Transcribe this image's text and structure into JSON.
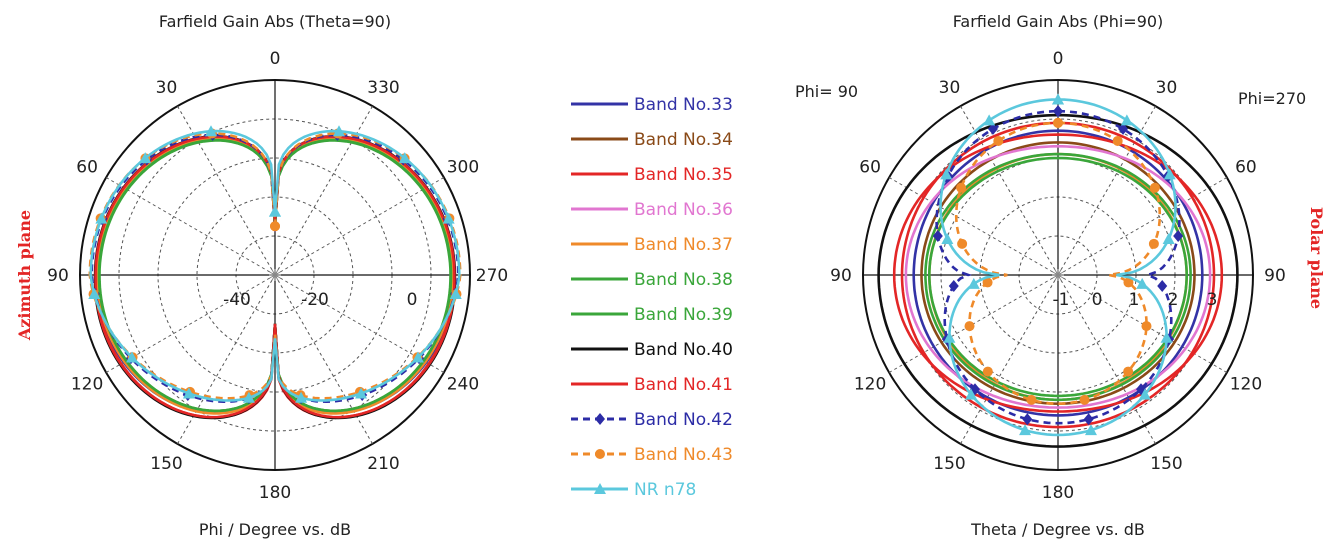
{
  "left_chart": {
    "title": "Farfield Gain Abs (Theta=90)",
    "xlabel": "Phi / Degree vs. dB",
    "side_label": "Azimuth plane",
    "angle_labels": [
      {
        "deg": 0,
        "text": "0"
      },
      {
        "deg": 30,
        "text": "330"
      },
      {
        "deg": 60,
        "text": "300"
      },
      {
        "deg": 90,
        "text": "270"
      },
      {
        "deg": 120,
        "text": "240"
      },
      {
        "deg": 150,
        "text": "210"
      },
      {
        "deg": 180,
        "text": "180"
      },
      {
        "deg": 210,
        "text": "150"
      },
      {
        "deg": 240,
        "text": "120"
      },
      {
        "deg": 270,
        "text": "90"
      },
      {
        "deg": 300,
        "text": "60"
      },
      {
        "deg": 330,
        "text": "30"
      }
    ],
    "radial_labels": [
      "-40",
      "-20",
      "0"
    ]
  },
  "right_chart": {
    "title": "Farfield Gain Abs (Phi=90)",
    "xlabel": "Theta / Degree vs. dB",
    "side_label": "Polar plane",
    "corner_left": "Phi= 90",
    "corner_right": "Phi=270",
    "angle_labels": [
      {
        "deg": 0,
        "text": "0"
      },
      {
        "deg": 30,
        "text": "30"
      },
      {
        "deg": 60,
        "text": "60"
      },
      {
        "deg": 90,
        "text": "90"
      },
      {
        "deg": 120,
        "text": "120"
      },
      {
        "deg": 150,
        "text": "150"
      },
      {
        "deg": 180,
        "text": "180"
      },
      {
        "deg": 210,
        "text": "150"
      },
      {
        "deg": 240,
        "text": "120"
      },
      {
        "deg": 270,
        "text": "90"
      },
      {
        "deg": 300,
        "text": "60"
      },
      {
        "deg": 330,
        "text": "30"
      }
    ],
    "radial_labels": [
      "-1",
      "0",
      "1",
      "2",
      "3"
    ]
  },
  "legend": [
    {
      "name": "Band No.33",
      "color": "#3333a6",
      "dash": false,
      "marker": "none"
    },
    {
      "name": "Band No.34",
      "color": "#8a4a18",
      "dash": false,
      "marker": "none"
    },
    {
      "name": "Band No.35",
      "color": "#e32626",
      "dash": false,
      "marker": "none"
    },
    {
      "name": "Band No.36",
      "color": "#e176d0",
      "dash": false,
      "marker": "none"
    },
    {
      "name": "Band No.37",
      "color": "#ef8a2a",
      "dash": false,
      "marker": "none"
    },
    {
      "name": "Band No.38",
      "color": "#3aa63a",
      "dash": false,
      "marker": "none"
    },
    {
      "name": "Band No.39",
      "color": "#3aa63a",
      "dash": false,
      "marker": "none"
    },
    {
      "name": "Band No.40",
      "color": "#111111",
      "dash": false,
      "marker": "none"
    },
    {
      "name": "Band No.41",
      "color": "#e32626",
      "dash": false,
      "marker": "none"
    },
    {
      "name": "Band No.42",
      "color": "#2c2ca6",
      "dash": true,
      "marker": "diamond"
    },
    {
      "name": "Band No.43",
      "color": "#ef8a2a",
      "dash": true,
      "marker": "circle"
    },
    {
      "name": "NR n78",
      "color": "#5bc8dd",
      "dash": false,
      "marker": "triangle"
    }
  ],
  "chart_data": [
    {
      "type": "polar-line",
      "title": "Farfield Gain Abs (Theta=90)",
      "angle_axis": "Phi (degrees)",
      "radial_unit": "dB",
      "rlim": [
        -40,
        0
      ],
      "series_shape": "azimuth",
      "series": [
        {
          "name": "Band No.33",
          "peak_dB": -3.2,
          "null_top_dB": -29,
          "null_bottom_dB": -30,
          "back_dB": -3.0
        },
        {
          "name": "Band No.34",
          "peak_dB": -3.4,
          "null_top_dB": -30,
          "null_bottom_dB": -30,
          "back_dB": -3.2
        },
        {
          "name": "Band No.35",
          "peak_dB": -3.3,
          "null_top_dB": -29,
          "null_bottom_dB": -29,
          "back_dB": -1.5
        },
        {
          "name": "Band No.36",
          "peak_dB": -3.5,
          "null_top_dB": -30,
          "null_bottom_dB": -30,
          "back_dB": -3.2
        },
        {
          "name": "Band No.37",
          "peak_dB": -3.6,
          "null_top_dB": -30,
          "null_bottom_dB": -29,
          "back_dB": -3.0
        },
        {
          "name": "Band No.38",
          "peak_dB": -3.9,
          "null_top_dB": -30,
          "null_bottom_dB": -30,
          "back_dB": -3.5
        },
        {
          "name": "Band No.39",
          "peak_dB": -4.0,
          "null_top_dB": -30,
          "null_bottom_dB": -30,
          "back_dB": -3.5
        },
        {
          "name": "Band No.40",
          "peak_dB": -3.1,
          "null_top_dB": -29,
          "null_bottom_dB": -30,
          "back_dB": -1.0
        },
        {
          "name": "Band No.41",
          "peak_dB": -3.2,
          "null_top_dB": -29,
          "null_bottom_dB": -30,
          "back_dB": -1.3
        },
        {
          "name": "Band No.42",
          "peak_dB": -2.4,
          "null_top_dB": -30,
          "null_bottom_dB": -28,
          "back_dB": -8.5
        },
        {
          "name": "Band No.43",
          "peak_dB": -2.0,
          "null_top_dB": -30,
          "null_bottom_dB": -28,
          "back_dB": -10.0
        },
        {
          "name": "NR n78",
          "peak_dB": -2.2,
          "null_top_dB": -27,
          "null_bottom_dB": -27,
          "back_dB": -9.5
        }
      ]
    },
    {
      "type": "polar-line",
      "title": "Farfield Gain Abs (Phi=90)",
      "angle_axis": "Theta (degrees)",
      "radial_unit": "dB",
      "rlim": [
        -2,
        3
      ],
      "series_shape": "polar",
      "series": [
        {
          "name": "Band No.33",
          "top_dB": 1.7,
          "side_dB": 1.7,
          "bottom_dB": 1.6
        },
        {
          "name": "Band No.34",
          "top_dB": 1.4,
          "side_dB": 1.5,
          "bottom_dB": 1.3
        },
        {
          "name": "Band No.35",
          "top_dB": 1.6,
          "side_dB": 2.2,
          "bottom_dB": 1.5
        },
        {
          "name": "Band No.36",
          "top_dB": 1.3,
          "side_dB": 1.9,
          "bottom_dB": 1.4
        },
        {
          "name": "Band No.37",
          "top_dB": 1.1,
          "side_dB": 1.3,
          "bottom_dB": 1.2
        },
        {
          "name": "Band No.38",
          "top_dB": 1.0,
          "side_dB": 1.3,
          "bottom_dB": 1.1
        },
        {
          "name": "Band No.39",
          "top_dB": 1.1,
          "side_dB": 1.4,
          "bottom_dB": 1.2
        },
        {
          "name": "Band No.40",
          "top_dB": 2.1,
          "side_dB": 2.6,
          "bottom_dB": 2.4
        },
        {
          "name": "Band No.41",
          "top_dB": 1.9,
          "side_dB": 2.0,
          "bottom_dB": 1.9
        },
        {
          "name": "Band No.42",
          "top_dB": 2.2,
          "side_dB": 0.3,
          "bottom_dB": 1.8
        },
        {
          "name": "Band No.43",
          "top_dB": 1.9,
          "side_dB": -0.7,
          "bottom_dB": 1.3
        },
        {
          "name": "NR n78",
          "top_dB": 2.5,
          "side_dB": -0.5,
          "bottom_dB": 2.1
        }
      ]
    }
  ]
}
